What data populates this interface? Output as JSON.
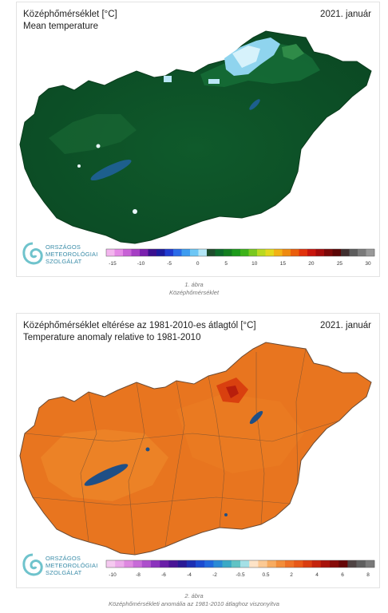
{
  "figure1": {
    "title": "Középhőmérséklet [°C]",
    "subtitle": "Mean temperature",
    "date": "2021. január",
    "logo": [
      "ORSZÁGOS",
      "METEOROLÓGIAI",
      "SZOLGÁLAT"
    ],
    "scale_colors": [
      "#f3b5ee",
      "#e58ae6",
      "#c861d6",
      "#a63ec4",
      "#7a1fae",
      "#3a0f8f",
      "#1b1a9e",
      "#1f3bd0",
      "#2a6be8",
      "#3d9cf0",
      "#6cc6f5",
      "#b3e6f6",
      "#1d4d2c",
      "#0c6a2a",
      "#127e1f",
      "#1b9a1a",
      "#3cb319",
      "#79c81e",
      "#b9d91f",
      "#e2d81c",
      "#f2b214",
      "#ef8a0e",
      "#ea5e0c",
      "#e1310b",
      "#c8140c",
      "#a40a0a",
      "#7a0707",
      "#5a0505",
      "#402f2f",
      "#5d5d5d",
      "#7a7a7a",
      "#999999"
    ],
    "scale_labels": [
      "-15",
      "-10",
      "-5",
      "0",
      "5",
      "10",
      "15",
      "20",
      "25",
      "30"
    ],
    "caption_number": "1. ábra",
    "caption_text": "Középhőmérséklet"
  },
  "figure2": {
    "title": "Középhőmérséklet eltérése az 1981-2010-es átlagtól [°C]",
    "subtitle": "Temperature anomaly relative to 1981-2010",
    "date": "2021. január",
    "logo": [
      "ORSZÁGOS",
      "METEOROLÓGIAI",
      "SZOLGÁLAT"
    ],
    "scale_colors": [
      "#f5c9f0",
      "#ecaaea",
      "#de88e0",
      "#c86bd8",
      "#ad4fcc",
      "#8c33bd",
      "#6a1ea8",
      "#4a1496",
      "#2a1a95",
      "#1d2fb3",
      "#1c4bd1",
      "#2169de",
      "#2a8bd6",
      "#3aa9c6",
      "#61c3c5",
      "#a4e0e6",
      "#fde3c7",
      "#fbc993",
      "#f7ab60",
      "#f28d3a",
      "#ee7126",
      "#e85818",
      "#da3d10",
      "#c5240d",
      "#a8130b",
      "#870b09",
      "#660708",
      "#4e4343",
      "#5f5f5f",
      "#7a7a7a"
    ],
    "scale_labels": [
      "-10",
      "-8",
      "-6",
      "-4",
      "-2",
      "-0.5",
      "0.5",
      "2",
      "4",
      "6",
      "8"
    ],
    "caption_number": "2. ábra",
    "caption_text": "Középhőmérsékleti anomália az 1981-2010 átlaghoz viszonyítva"
  }
}
